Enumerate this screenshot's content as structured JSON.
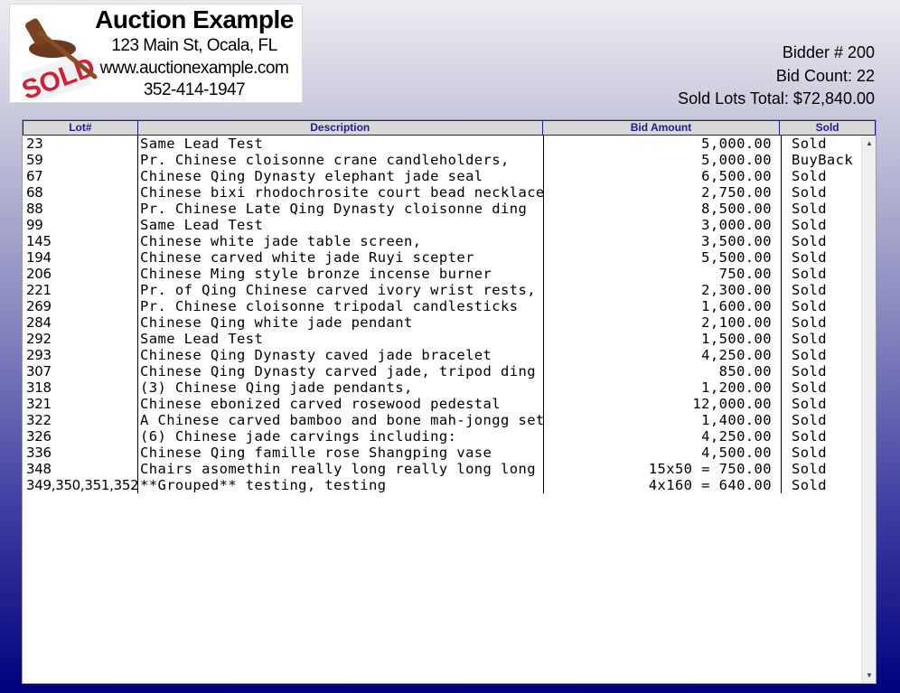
{
  "company": {
    "name": "Auction Example",
    "address": "123 Main St, Ocala, FL",
    "website": "www.auctionexample.com",
    "phone": "352-414-1947",
    "logo_text": "SOLD"
  },
  "bidder": {
    "number": "Bidder # 200",
    "bid_count": "Bid Count: 22",
    "sold_total": "Sold Lots Total: $72,840.00"
  },
  "table": {
    "columns": [
      "Lot#",
      "Description",
      "Bid Amount",
      "Sold"
    ],
    "rows": [
      [
        "23",
        "Same Lead Test",
        "5,000.00",
        "Sold"
      ],
      [
        "59",
        "Pr. Chinese cloisonne crane candleholders,",
        "5,000.00",
        "BuyBack"
      ],
      [
        "67",
        "Chinese Qing Dynasty elephant jade seal",
        "6,500.00",
        "Sold"
      ],
      [
        "68",
        "Chinese bixi rhodochrosite court bead necklace",
        "2,750.00",
        "Sold"
      ],
      [
        "88",
        "Pr. Chinese Late Qing Dynasty cloisonne ding",
        "8,500.00",
        "Sold"
      ],
      [
        "99",
        "Same Lead Test",
        "3,000.00",
        "Sold"
      ],
      [
        "145",
        "Chinese white jade table screen,",
        "3,500.00",
        "Sold"
      ],
      [
        "194",
        "Chinese carved white jade Ruyi scepter",
        "5,500.00",
        "Sold"
      ],
      [
        "206",
        "Chinese Ming style bronze incense burner",
        "750.00",
        "Sold"
      ],
      [
        "221",
        "Pr. of Qing Chinese carved ivory wrist rests,",
        "2,300.00",
        "Sold"
      ],
      [
        "269",
        "Pr. Chinese cloisonne tripodal candlesticks",
        "1,600.00",
        "Sold"
      ],
      [
        "284",
        "Chinese Qing white jade pendant",
        "2,100.00",
        "Sold"
      ],
      [
        "292",
        "Same Lead Test",
        "1,500.00",
        "Sold"
      ],
      [
        "293",
        "Chinese Qing Dynasty caved jade bracelet",
        "4,250.00",
        "Sold"
      ],
      [
        "307",
        "Chinese Qing Dynasty carved jade, tripod ding",
        "850.00",
        "Sold"
      ],
      [
        "318",
        "(3) Chinese Qing jade pendants,",
        "1,200.00",
        "Sold"
      ],
      [
        "321",
        "Chinese ebonized carved rosewood pedestal",
        "12,000.00",
        "Sold"
      ],
      [
        "322",
        "A Chinese carved bamboo and bone mah-jongg set",
        "1,400.00",
        "Sold"
      ],
      [
        "326",
        "(6) Chinese jade carvings including:",
        "4,250.00",
        "Sold"
      ],
      [
        "336",
        "Chinese Qing famille rose Shangping vase",
        "4,500.00",
        "Sold"
      ],
      [
        "348",
        "Chairs asomethin really long really long long",
        "15x50 = 750.00",
        "Sold"
      ],
      [
        "349,350,351,352",
        "**Grouped** testing, testing",
        "4x160 = 640.00",
        "Sold"
      ]
    ]
  },
  "colors": {
    "header_text": "#1c1c9c",
    "background_bottom": "#00007e"
  }
}
